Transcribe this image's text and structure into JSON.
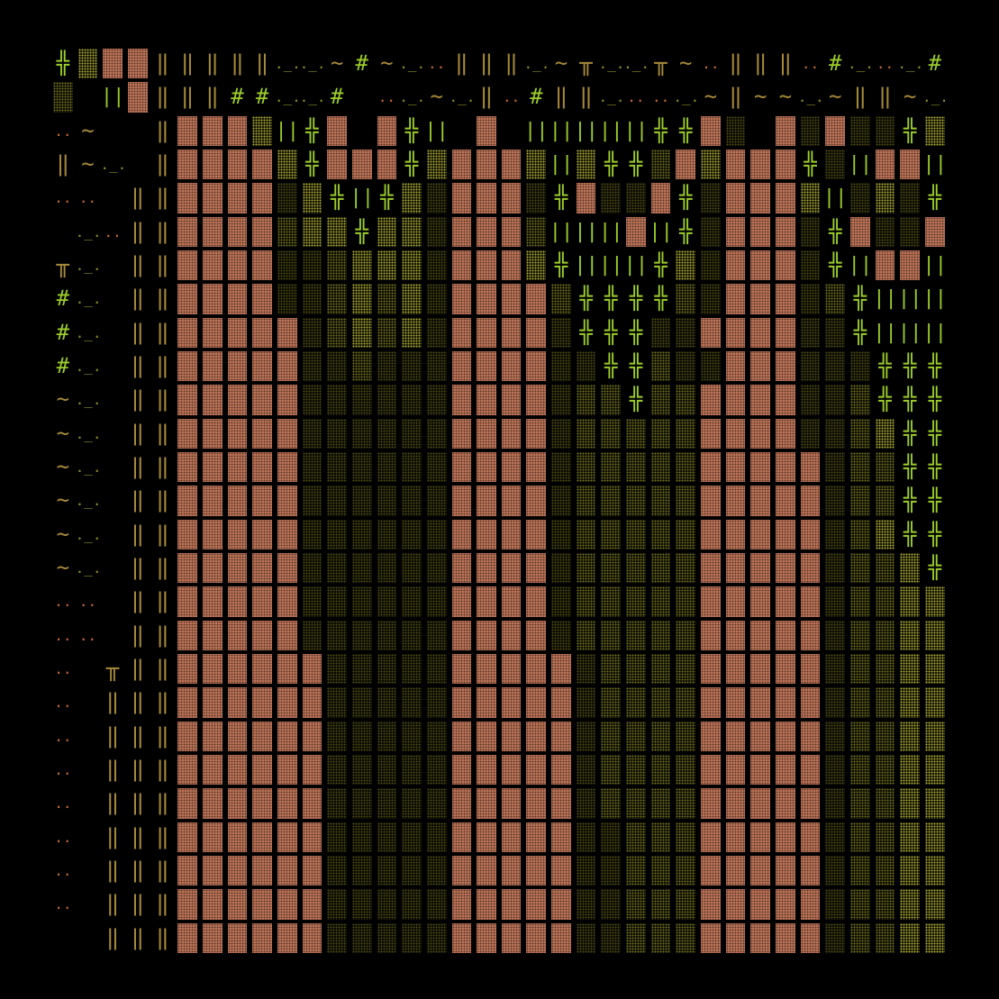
{
  "colors": {
    "background": "#000000",
    "wall": "#c77a5c",
    "floor_dim": "#4a4a12",
    "floor_mid": "#6e6e1e",
    "floor_lit": "#a8a832",
    "glyph_olive": "#8f8f2a",
    "glyph_green": "#9ccc2a",
    "glyph_orange": "#c76b3a",
    "glyph_tan": "#a68a3a"
  },
  "legend": {
    "W": "wall",
    "d": "floor-dim",
    "m": "floor-mid",
    "l": "floor-lit",
    ".": "empty",
    "|": "pillar-glyph",
    "#": "hash-glyph",
    "+": "cross-glyph",
    "~": "wave-glyph",
    ":": "dots-glyph",
    "_": "ledge-glyph",
    "T": "post-glyph",
    "I": "bars-glyph"
  },
  "glyphs": {
    "|": "‖",
    "#": "#",
    "+": "╬",
    "~": "~",
    ":": "..",
    "_": "._.",
    "T": "╥",
    "I": "||"
  },
  "map_rows": [
    "+lWW|||||__~#~_:|||_~T__T~:|||:#_:_#",
    "m.IW|||##__#.:_~_|:#||_::_~|~~_~||~_",
    ":~..|WWWlI+W.W+I.W.IIIII++Wd.WdWdd+l",
    "|~_.|WWWWl+WWW+lWWWlIl++mWlWWW+dIWWI",
    "::.||WWWWdl+I+ldWWWd+WddW+dWWWlIdld+",
    "._:||WWWWmll+lldWWWmIIIWI+dWWWd+WddW",
    "T_.||WWWWddmllldWWWl+III+ldWWWd+IWWI",
    "#_.||WWWWddmlmldWWWWm++++mdWWWdm+III",
    "#_.||WWWWWdmlmldWWWWd+++ddWWWWdd+III",
    "#_.||WWWWWddmdddWWWWdd++mddWWWddd+++",
    "~_.||WWWWWddddddWWWWdmm+mmWWWWddm+++",
    "~_.||WWWWWddddddWWWWdmmmmmWWWWddml++",
    "~_.||WWWWWddddddWWWWdmmmmmWWWWWdmm++",
    "~_.||WWWWWddddddWWWWdmmmmmWWWWWdmm++",
    "~_.||WWWWWddddddWWWWdmmmmmWWWWWdml++",
    "~_.||WWWWWddddddWWWWdmmmmmWWWWWdmml+",
    "::.||WWWWWddddddWWWWdmmmmmWWWWWdmmll",
    "::.||WWWWWddddddWWWWdmmmmmWWWWWdmmll",
    ":.T||WWWWWWdddddWWWWWdmmmmWWWWWdmmll",
    ":.|||WWWWWWdddddWWWWWdmmmmWWWWWdmmll",
    ":.|||WWWWWWdddddWWWWWdmmmmWWWWWdmmll",
    ":.|||WWWWWWdddddWWWWWdmmmmWWWWWdmmll",
    ":.|||WWWWWWdddddWWWWWdmmmmWWWWWdmmll",
    ":.|||WWWWWWdddddWWWWWddmmmWWWWWdmmll",
    ":.|||WWWWWWdddddWWWWWddmmmWWWWWdmmll",
    ":.|||WWWWWWdddddWWWWWddmmmWWWWWdmmll",
    "..|||WWWWWWdddddWWWWWddmmmWWWWWdmmll"
  ]
}
